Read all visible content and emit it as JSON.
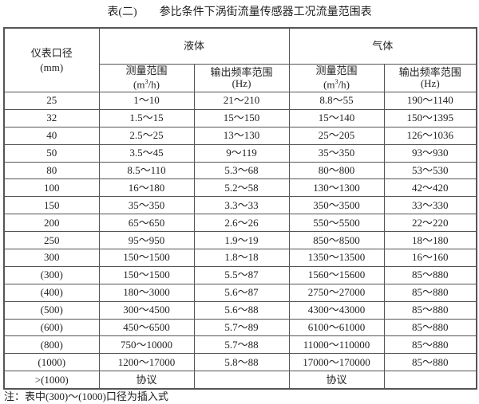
{
  "title": {
    "prefix": "表(二)",
    "main": "参比条件下涡街流量传感器工况流量范围表"
  },
  "header": {
    "diameter": "仪表口径",
    "diameter_unit": "(mm)",
    "liquid": "液体",
    "gas": "气体",
    "measure_range": "测量范围",
    "measure_unit_pre": "(m",
    "measure_unit_sup": "3",
    "measure_unit_post": "/h)",
    "freq_range": "输出频率范围",
    "freq_unit": "(Hz)"
  },
  "rows": [
    [
      "25",
      "1～10",
      "21～210",
      "8.8～55",
      "190～1140"
    ],
    [
      "32",
      "1.5～15",
      "15～150",
      "15～140",
      "150～1395"
    ],
    [
      "40",
      "2.5～25",
      "13～130",
      "25～205",
      "126～1036"
    ],
    [
      "50",
      "3.5～45",
      "9～119",
      "35～350",
      "93～930"
    ],
    [
      "80",
      "8.5～110",
      "5.3～68",
      "80～800",
      "53～530"
    ],
    [
      "100",
      "16～180",
      "5.2～58",
      "130～1300",
      "42～420"
    ],
    [
      "150",
      "35～350",
      "3.3～33",
      "350～3500",
      "33～330"
    ],
    [
      "200",
      "65～650",
      "2.6～26",
      "550～5500",
      "22～220"
    ],
    [
      "250",
      "95～950",
      "1.9～19",
      "850～8500",
      "18～180"
    ],
    [
      "300",
      "150～1500",
      "1.8～18",
      "1350～13500",
      "16～160"
    ],
    [
      "(300)",
      "150～1500",
      "5.5～87",
      "1560～15600",
      "85～880"
    ],
    [
      "(400)",
      "180～3000",
      "5.6～87",
      "2750～27000",
      "85～880"
    ],
    [
      "(500)",
      "300～4500",
      "5.6～88",
      "4300～43000",
      "85～880"
    ],
    [
      "(600)",
      "450～6500",
      "5.7～89",
      "6100～61000",
      "85～880"
    ],
    [
      "(800)",
      "750～10000",
      "5.7～88",
      "11000～110000",
      "85～880"
    ],
    [
      "(1000)",
      "1200～17000",
      "5.8～88",
      "17000～170000",
      "85～880"
    ],
    [
      ">(1000)",
      "协议",
      "",
      "协议",
      ""
    ]
  ],
  "note": "注：表中(300)～(1000)口径为插入式"
}
